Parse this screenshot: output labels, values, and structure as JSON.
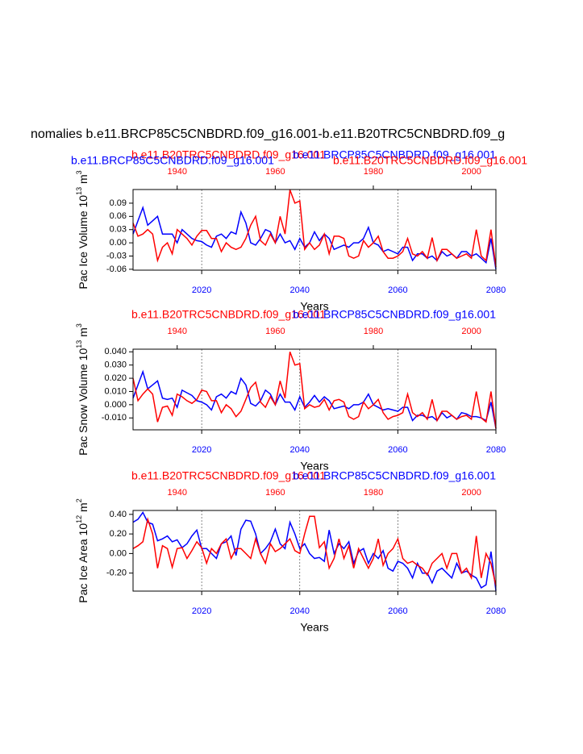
{
  "title": "nomalies b.e11.BRCP85C5CNBDRD.f09_g16.001-b.e11.B20TRC5CNBDRD.f09_g",
  "chart_data": [
    {
      "type": "line",
      "subtitles": [
        {
          "text": "b.e11.B20TRC5CNBDRD.f09_g16.001",
          "color": "#ff0000",
          "position": "left"
        },
        {
          "text": "b.e11.BRCP85C5CNBDRD.f09_g16.001",
          "color": "#0000ff",
          "position": "right"
        },
        {
          "text": "b.e11.BRCP85C5CNBDRD.f09_g16.001",
          "color": "#0000ff",
          "position": "far-left"
        },
        {
          "text": "b.e11.B20TRC5CNBDRD.f09_g16.001",
          "color": "#ff0000",
          "position": "far-right"
        }
      ],
      "ylabel_parts": [
        "Pac Ice Volume 10",
        "13",
        " m",
        "3"
      ],
      "xlabel": "Years",
      "xlim": [
        2006,
        2080
      ],
      "xticks": [
        2020,
        2040,
        2060,
        2080
      ],
      "xtick_color": "#0000ff",
      "x2lim": [
        1931,
        2005
      ],
      "x2ticks": [
        1940,
        1960,
        1980,
        2000
      ],
      "x2tick_color": "#ff0000",
      "ylim": [
        -0.062,
        0.121
      ],
      "yticks": [
        -0.06,
        -0.03,
        {
          "value": 0,
          "label": "0.00"
        },
        0.03,
        0.06,
        0.09
      ],
      "xgrid": true,
      "x": [
        2006,
        2007,
        2008,
        2009,
        2010,
        2011,
        2012,
        2013,
        2014,
        2015,
        2016,
        2017,
        2018,
        2019,
        2020,
        2021,
        2022,
        2023,
        2024,
        2025,
        2026,
        2027,
        2028,
        2029,
        2030,
        2031,
        2032,
        2033,
        2034,
        2035,
        2036,
        2037,
        2038,
        2039,
        2040,
        2041,
        2042,
        2043,
        2044,
        2045,
        2046,
        2047,
        2048,
        2049,
        2050,
        2051,
        2052,
        2053,
        2054,
        2055,
        2056,
        2057,
        2058,
        2059,
        2060,
        2061,
        2062,
        2063,
        2064,
        2065,
        2066,
        2067,
        2068,
        2069,
        2070,
        2071,
        2072,
        2073,
        2074,
        2075,
        2076,
        2077,
        2078,
        2079,
        2080
      ],
      "x2": [
        1931,
        1932,
        1933,
        1934,
        1935,
        1936,
        1937,
        1938,
        1939,
        1940,
        1941,
        1942,
        1943,
        1944,
        1945,
        1946,
        1947,
        1948,
        1949,
        1950,
        1951,
        1952,
        1953,
        1954,
        1955,
        1956,
        1957,
        1958,
        1959,
        1960,
        1961,
        1962,
        1963,
        1964,
        1965,
        1966,
        1967,
        1968,
        1969,
        1970,
        1971,
        1972,
        1973,
        1974,
        1975,
        1976,
        1977,
        1978,
        1979,
        1980,
        1981,
        1982,
        1983,
        1984,
        1985,
        1986,
        1987,
        1988,
        1989,
        1990,
        1991,
        1992,
        1993,
        1994,
        1995,
        1996,
        1997,
        1998,
        1999,
        2000,
        2001,
        2002,
        2003,
        2004,
        2005
      ],
      "series": [
        {
          "color": "#0000ff",
          "axis": "x",
          "values": [
            0.02,
            0.05,
            0.08,
            0.04,
            0.05,
            0.06,
            0.02,
            0.02,
            0.02,
            0.0,
            0.03,
            0.02,
            0.01,
            0.005,
            0.003,
            -0.005,
            -0.01,
            0.015,
            0.02,
            0.01,
            0.025,
            0.02,
            0.07,
            0.045,
            0.0,
            -0.005,
            0.01,
            0.03,
            0.025,
            0.0,
            0.02,
            0.0,
            0.005,
            -0.015,
            0.01,
            -0.01,
            0.0,
            0.025,
            0.005,
            0.02,
            0.01,
            -0.015,
            -0.01,
            -0.005,
            -0.01,
            0.0,
            0.0,
            0.01,
            0.035,
            0.0,
            -0.005,
            -0.02,
            -0.015,
            -0.02,
            -0.025,
            -0.01,
            -0.01,
            -0.04,
            -0.025,
            -0.025,
            -0.035,
            -0.03,
            -0.04,
            -0.02,
            -0.03,
            -0.025,
            -0.035,
            -0.02,
            -0.02,
            -0.03,
            -0.025,
            -0.035,
            -0.045,
            0.01,
            -0.06
          ]
        },
        {
          "color": "#ff0000",
          "axis": "x2",
          "values": [
            0.045,
            0.015,
            0.02,
            0.03,
            0.02,
            -0.04,
            -0.01,
            0.0,
            -0.025,
            0.03,
            0.02,
            0.01,
            -0.005,
            0.015,
            0.028,
            0.028,
            0.01,
            0.01,
            -0.02,
            0.0,
            -0.01,
            -0.015,
            -0.01,
            0.01,
            0.04,
            0.06,
            0.005,
            -0.005,
            0.02,
            0.0,
            0.06,
            0.02,
            0.12,
            0.09,
            0.095,
            -0.015,
            0.0,
            -0.015,
            -0.005,
            0.02,
            -0.025,
            0.015,
            0.015,
            0.01,
            -0.03,
            -0.035,
            -0.03,
            0.005,
            -0.01,
            0.0,
            0.015,
            -0.02,
            -0.035,
            -0.035,
            -0.03,
            -0.02,
            0.01,
            -0.025,
            -0.03,
            -0.02,
            -0.035,
            0.012,
            -0.04,
            -0.015,
            -0.015,
            -0.025,
            -0.035,
            -0.03,
            -0.025,
            -0.035,
            0.03,
            -0.03,
            -0.04,
            0.03,
            -0.055
          ]
        }
      ]
    },
    {
      "type": "line",
      "subtitles": [
        {
          "text": "b.e11.B20TRC5CNBDRD.f09_g16.001",
          "color": "#ff0000",
          "position": "left"
        },
        {
          "text": "b.e11.BRCP85C5CNBDRD.f09_g16.001",
          "color": "#0000ff",
          "position": "right"
        }
      ],
      "ylabel_parts": [
        "Pac Snow Volume 10",
        "13",
        " m",
        "3"
      ],
      "xlabel": "Years",
      "xlim": [
        2006,
        2080
      ],
      "xticks": [
        2020,
        2040,
        2060,
        2080
      ],
      "xtick_color": "#0000ff",
      "x2lim": [
        1931,
        2005
      ],
      "x2ticks": [
        1940,
        1960,
        1980,
        2000
      ],
      "x2tick_color": "#ff0000",
      "ylim": [
        -0.019,
        0.042
      ],
      "yticks": [
        {
          "value": -0.01,
          "label": "-0.010"
        },
        {
          "value": 0,
          "label": "0.000"
        },
        {
          "value": 0.01,
          "label": "0.010"
        },
        {
          "value": 0.02,
          "label": "0.020"
        },
        {
          "value": 0.03,
          "label": "0.030"
        },
        {
          "value": 0.04,
          "label": "0.040"
        }
      ],
      "xgrid": true,
      "x": [
        2006,
        2007,
        2008,
        2009,
        2010,
        2011,
        2012,
        2013,
        2014,
        2015,
        2016,
        2017,
        2018,
        2019,
        2020,
        2021,
        2022,
        2023,
        2024,
        2025,
        2026,
        2027,
        2028,
        2029,
        2030,
        2031,
        2032,
        2033,
        2034,
        2035,
        2036,
        2037,
        2038,
        2039,
        2040,
        2041,
        2042,
        2043,
        2044,
        2045,
        2046,
        2047,
        2048,
        2049,
        2050,
        2051,
        2052,
        2053,
        2054,
        2055,
        2056,
        2057,
        2058,
        2059,
        2060,
        2061,
        2062,
        2063,
        2064,
        2065,
        2066,
        2067,
        2068,
        2069,
        2070,
        2071,
        2072,
        2073,
        2074,
        2075,
        2076,
        2077,
        2078,
        2079,
        2080
      ],
      "x2": [
        1931,
        1932,
        1933,
        1934,
        1935,
        1936,
        1937,
        1938,
        1939,
        1940,
        1941,
        1942,
        1943,
        1944,
        1945,
        1946,
        1947,
        1948,
        1949,
        1950,
        1951,
        1952,
        1953,
        1954,
        1955,
        1956,
        1957,
        1958,
        1959,
        1960,
        1961,
        1962,
        1963,
        1964,
        1965,
        1966,
        1967,
        1968,
        1969,
        1970,
        1971,
        1972,
        1973,
        1974,
        1975,
        1976,
        1977,
        1978,
        1979,
        1980,
        1981,
        1982,
        1983,
        1984,
        1985,
        1986,
        1987,
        1988,
        1989,
        1990,
        1991,
        1992,
        1993,
        1994,
        1995,
        1996,
        1997,
        1998,
        1999,
        2000,
        2001,
        2002,
        2003,
        2004,
        2005
      ],
      "series": [
        {
          "color": "#0000ff",
          "axis": "x",
          "values": [
            0.005,
            0.015,
            0.025,
            0.012,
            0.015,
            0.018,
            0.005,
            0.004,
            0.005,
            -0.002,
            0.011,
            0.009,
            0.007,
            0.003,
            0.002,
            0.0,
            -0.004,
            0.006,
            0.008,
            0.005,
            0.01,
            0.008,
            0.02,
            0.015,
            0.001,
            -0.001,
            0.003,
            0.011,
            0.008,
            0.0,
            0.008,
            0.002,
            0.002,
            -0.004,
            0.006,
            -0.002,
            0.002,
            0.007,
            0.002,
            0.006,
            0.003,
            -0.003,
            -0.002,
            -0.001,
            -0.003,
            0.0,
            0.0,
            0.002,
            0.008,
            0.0,
            -0.002,
            -0.004,
            -0.003,
            -0.004,
            -0.005,
            -0.002,
            -0.002,
            -0.012,
            -0.008,
            -0.008,
            -0.01,
            -0.009,
            -0.012,
            -0.006,
            -0.01,
            -0.008,
            -0.011,
            -0.006,
            -0.007,
            -0.009,
            -0.009,
            -0.01,
            -0.012,
            0.002,
            -0.018
          ]
        },
        {
          "color": "#ff0000",
          "axis": "x2",
          "values": [
            0.02,
            0.003,
            0.008,
            0.012,
            0.008,
            -0.013,
            -0.002,
            -0.001,
            -0.008,
            0.008,
            0.006,
            0.003,
            0.001,
            0.004,
            0.011,
            0.01,
            0.003,
            0.003,
            -0.006,
            0.0,
            -0.003,
            -0.009,
            -0.005,
            0.004,
            0.013,
            0.017,
            0.002,
            -0.002,
            0.006,
            0.0,
            0.018,
            0.005,
            0.04,
            0.03,
            0.031,
            -0.003,
            0.0,
            -0.002,
            -0.001,
            0.004,
            -0.004,
            0.003,
            0.004,
            0.002,
            -0.009,
            -0.011,
            -0.009,
            0.002,
            -0.003,
            0.0,
            0.004,
            -0.006,
            -0.011,
            -0.009,
            -0.008,
            -0.006,
            0.008,
            -0.006,
            -0.009,
            -0.006,
            -0.011,
            0.004,
            -0.012,
            -0.005,
            -0.005,
            -0.008,
            -0.011,
            -0.009,
            -0.008,
            -0.011,
            0.01,
            -0.01,
            -0.013,
            0.01,
            -0.018
          ]
        }
      ]
    },
    {
      "type": "line",
      "subtitles": [
        {
          "text": "b.e11.B20TRC5CNBDRD.f09_g16.001",
          "color": "#ff0000",
          "position": "left"
        },
        {
          "text": "b.e11.BRCP85C5CNBDRD.f09_g16.001",
          "color": "#0000ff",
          "position": "right"
        }
      ],
      "ylabel_parts": [
        "Pac Ice Area 10",
        "12",
        " m",
        "2"
      ],
      "xlabel": "Years",
      "xlim": [
        2006,
        2080
      ],
      "xticks": [
        2020,
        2040,
        2060,
        2080
      ],
      "xtick_color": "#0000ff",
      "x2lim": [
        1931,
        2005
      ],
      "x2ticks": [
        1940,
        1960,
        1980,
        2000
      ],
      "x2tick_color": "#ff0000",
      "ylim": [
        -0.384,
        0.44
      ],
      "yticks": [
        {
          "value": -0.2,
          "label": "-0.20"
        },
        {
          "value": 0,
          "label": "0.00"
        },
        {
          "value": 0.2,
          "label": "0.20"
        },
        {
          "value": 0.4,
          "label": "0.40"
        }
      ],
      "xgrid": true,
      "x": [
        2006,
        2007,
        2008,
        2009,
        2010,
        2011,
        2012,
        2013,
        2014,
        2015,
        2016,
        2017,
        2018,
        2019,
        2020,
        2021,
        2022,
        2023,
        2024,
        2025,
        2026,
        2027,
        2028,
        2029,
        2030,
        2031,
        2032,
        2033,
        2034,
        2035,
        2036,
        2037,
        2038,
        2039,
        2040,
        2041,
        2042,
        2043,
        2044,
        2045,
        2046,
        2047,
        2048,
        2049,
        2050,
        2051,
        2052,
        2053,
        2054,
        2055,
        2056,
        2057,
        2058,
        2059,
        2060,
        2061,
        2062,
        2063,
        2064,
        2065,
        2066,
        2067,
        2068,
        2069,
        2070,
        2071,
        2072,
        2073,
        2074,
        2075,
        2076,
        2077,
        2078,
        2079,
        2080
      ],
      "x2": [
        1931,
        1932,
        1933,
        1934,
        1935,
        1936,
        1937,
        1938,
        1939,
        1940,
        1941,
        1942,
        1943,
        1944,
        1945,
        1946,
        1947,
        1948,
        1949,
        1950,
        1951,
        1952,
        1953,
        1954,
        1955,
        1956,
        1957,
        1958,
        1959,
        1960,
        1961,
        1962,
        1963,
        1964,
        1965,
        1966,
        1967,
        1968,
        1969,
        1970,
        1971,
        1972,
        1973,
        1974,
        1975,
        1976,
        1977,
        1978,
        1979,
        1980,
        1981,
        1982,
        1983,
        1984,
        1985,
        1986,
        1987,
        1988,
        1989,
        1990,
        1991,
        1992,
        1993,
        1994,
        1995,
        1996,
        1997,
        1998,
        1999,
        2000,
        2001,
        2002,
        2003,
        2004,
        2005
      ],
      "series": [
        {
          "color": "#0000ff",
          "axis": "x",
          "values": [
            0.32,
            0.35,
            0.42,
            0.32,
            0.3,
            0.13,
            0.15,
            0.18,
            0.12,
            0.14,
            0.06,
            0.1,
            0.18,
            0.24,
            0.05,
            0.05,
            0.0,
            -0.05,
            0.1,
            0.12,
            0.18,
            -0.02,
            0.25,
            0.34,
            0.33,
            0.2,
            0.0,
            0.05,
            0.12,
            0.25,
            0.1,
            0.05,
            0.32,
            0.2,
            0.05,
            0.1,
            0.0,
            -0.05,
            -0.04,
            -0.08,
            0.24,
            0.0,
            0.1,
            0.05,
            0.12,
            -0.1,
            0.02,
            0.05,
            -0.1,
            0.0,
            -0.05,
            0.03,
            -0.15,
            -0.18,
            -0.08,
            -0.1,
            -0.15,
            -0.25,
            -0.1,
            -0.2,
            -0.2,
            -0.3,
            -0.18,
            -0.15,
            -0.2,
            -0.25,
            -0.1,
            -0.2,
            -0.18,
            -0.22,
            -0.25,
            -0.35,
            -0.32,
            0.02,
            -0.38
          ]
        },
        {
          "color": "#ff0000",
          "axis": "x2",
          "values": [
            0.05,
            0.08,
            0.12,
            0.35,
            0.2,
            -0.15,
            0.08,
            0.05,
            -0.14,
            0.05,
            0.06,
            -0.05,
            0.03,
            0.12,
            0.06,
            -0.1,
            0.05,
            0.0,
            0.1,
            0.15,
            -0.05,
            0.05,
            0.05,
            0.0,
            -0.05,
            0.15,
            0.0,
            -0.1,
            0.1,
            0.02,
            0.05,
            0.1,
            0.15,
            0.03,
            0.0,
            0.2,
            0.38,
            0.38,
            0.06,
            0.12,
            -0.15,
            -0.05,
            0.15,
            -0.05,
            0.08,
            -0.15,
            0.05,
            -0.05,
            -0.15,
            -0.05,
            0.15,
            -0.12,
            0.0,
            0.05,
            0.15,
            -0.05,
            -0.1,
            -0.08,
            -0.12,
            -0.15,
            -0.22,
            -0.1,
            -0.05,
            0.0,
            -0.15,
            0.0,
            0.0,
            -0.2,
            -0.15,
            -0.25,
            0.18,
            -0.25,
            0.0,
            -0.1,
            -0.33
          ]
        }
      ]
    }
  ]
}
